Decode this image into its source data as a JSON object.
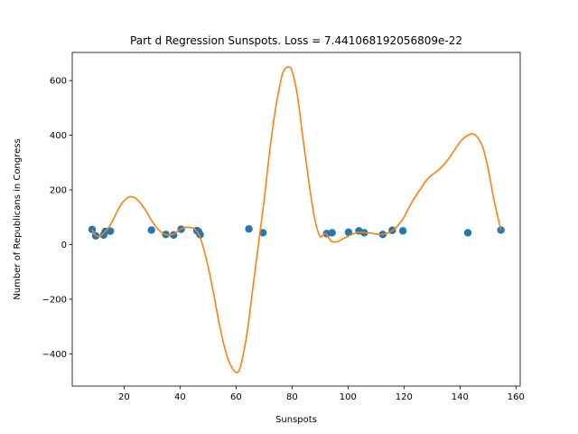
{
  "chart_data": {
    "type": "scatter",
    "title": "Part d Regression Sunspots. Loss = 7.441068192056809e-22",
    "xlabel": "Sunspots",
    "ylabel": "Number of Republicans in Congress",
    "xlim": [
      1.5,
      161.5
    ],
    "ylim": [
      -518,
      703
    ],
    "xticks": [
      20,
      40,
      60,
      80,
      100,
      120,
      140,
      160
    ],
    "yticks": [
      -400,
      -200,
      0,
      200,
      400,
      600
    ],
    "grid": false,
    "legend": "none",
    "series": [
      {
        "kind": "scatter",
        "color": "#1f77b4",
        "x": [
          8.6,
          9.9,
          12.7,
          13.3,
          15.1,
          29.8,
          34.9,
          37.7,
          40.4,
          46.0,
          46.6,
          47.2,
          64.6,
          69.6,
          92.4,
          94.3,
          100.2,
          103.9,
          105.8,
          112.4,
          115.8,
          119.6,
          142.8,
          154.6
        ],
        "y": [
          55,
          32,
          35,
          48,
          49,
          53,
          37,
          35,
          56,
          51,
          47,
          36,
          57,
          43,
          40,
          43,
          45,
          50,
          43,
          37,
          52,
          50,
          43,
          53
        ]
      },
      {
        "kind": "line",
        "color": "#ff7f0e",
        "x": [
          8.6,
          10,
          12,
          15,
          18,
          20,
          22,
          24,
          26,
          28,
          30,
          32,
          34,
          36,
          38,
          40,
          42,
          44,
          45,
          46.6,
          48,
          50,
          52,
          54,
          56,
          58,
          60,
          61,
          62,
          64,
          66,
          68,
          70,
          72,
          74,
          76,
          77,
          78.5,
          80,
          82,
          84,
          86,
          88,
          90,
          92,
          94,
          96,
          98,
          100,
          102,
          104,
          106,
          108,
          110,
          112,
          114,
          116,
          118,
          120,
          122,
          124,
          126,
          128,
          130,
          132,
          134,
          136,
          138,
          140,
          142,
          144,
          145,
          146,
          148,
          150,
          152,
          154.6
        ],
        "y": [
          55,
          32,
          35,
          70,
          130,
          160,
          175,
          170,
          150,
          120,
          85,
          58,
          40,
          35,
          40,
          55,
          63,
          62,
          58,
          40,
          0,
          -80,
          -180,
          -290,
          -380,
          -440,
          -468,
          -462,
          -430,
          -320,
          -160,
          0,
          160,
          340,
          490,
          600,
          635,
          650,
          635,
          540,
          380,
          230,
          100,
          30,
          40,
          12,
          10,
          20,
          30,
          40,
          45,
          43,
          42,
          38,
          37,
          42,
          52,
          72,
          100,
          140,
          175,
          205,
          235,
          255,
          270,
          290,
          315,
          345,
          375,
          395,
          405,
          403,
          395,
          360,
          280,
          170,
          53
        ]
      }
    ]
  }
}
